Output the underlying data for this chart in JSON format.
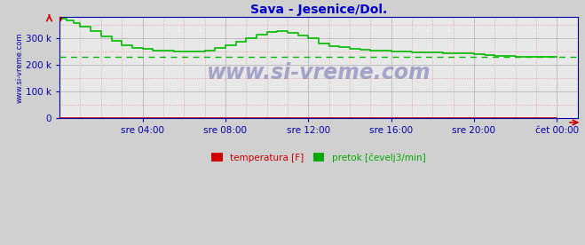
{
  "title": "Sava - Jesenice/Dol.",
  "title_color": "#0000cc",
  "bg_color": "#d0d0d0",
  "plot_bg_color": "#e8e8e8",
  "grid_color_major": "#b8b8b8",
  "grid_color_minor": "#e8a0a0",
  "ylabel": "www.si-vreme.com",
  "ylim": [
    0,
    380000
  ],
  "yticks": [
    0,
    100000,
    200000,
    300000
  ],
  "ytick_labels": [
    "0",
    "100 k",
    "200 k",
    "300 k"
  ],
  "xtick_labels": [
    "sre 04:00",
    "sre 08:00",
    "sre 12:00",
    "sre 16:00",
    "sre 20:00",
    "čet 00:00"
  ],
  "xtick_positions": [
    4,
    8,
    12,
    16,
    20,
    24
  ],
  "xlim": [
    0,
    25
  ],
  "avg_line_value": 230000,
  "watermark": "www.si-vreme.com",
  "legend": [
    {
      "label": "temperatura [F]",
      "color": "#cc0000"
    },
    {
      "label": "pretok [čevelj3/min]",
      "color": "#00aa00"
    }
  ],
  "pretok_x": [
    0,
    0.33,
    0.67,
    1,
    1.5,
    2,
    2.5,
    3,
    3.5,
    4,
    4.5,
    5,
    5.5,
    6,
    6.5,
    7,
    7.5,
    8,
    8.5,
    9,
    9.5,
    10,
    10.5,
    11,
    11.5,
    12,
    12.5,
    13,
    13.5,
    14,
    14.5,
    15,
    15.5,
    16,
    16.5,
    17,
    17.5,
    18,
    18.5,
    19,
    19.5,
    20,
    20.5,
    21,
    21.5,
    22,
    22.5,
    23,
    23.5,
    24
  ],
  "pretok_y": [
    375000,
    368000,
    358000,
    345000,
    328000,
    308000,
    290000,
    275000,
    265000,
    260000,
    256000,
    253000,
    251000,
    250000,
    251000,
    256000,
    264000,
    275000,
    288000,
    302000,
    315000,
    325000,
    328000,
    322000,
    312000,
    300000,
    282000,
    272000,
    267000,
    262000,
    258000,
    256000,
    254000,
    252000,
    250000,
    249000,
    248000,
    247000,
    246000,
    245000,
    243000,
    241000,
    238000,
    235000,
    233000,
    232000,
    231000,
    231000,
    230000,
    230000
  ],
  "temp_y": 1000,
  "line_color": "#00bb00",
  "line_color_temp": "#cc0000",
  "line_width": 1.2,
  "axis_color": "#0000aa",
  "tick_color": "#0000aa",
  "tick_fontsize": 7.5
}
